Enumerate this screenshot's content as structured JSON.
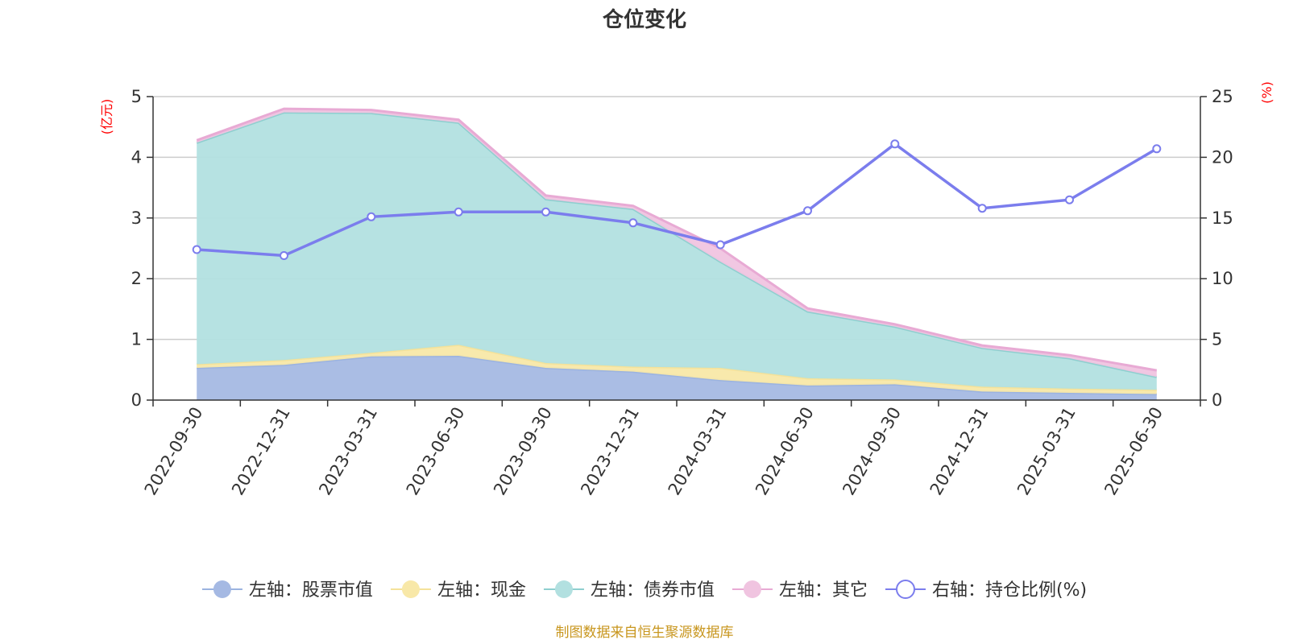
{
  "chart_data": {
    "type": "area",
    "title": "仓位变化",
    "categories": [
      "2022-09-30",
      "2022-12-31",
      "2023-03-31",
      "2023-06-30",
      "2023-09-30",
      "2023-12-31",
      "2024-03-31",
      "2024-06-30",
      "2024-09-30",
      "2024-12-31",
      "2025-03-31",
      "2025-06-30"
    ],
    "left_axis": {
      "unit": "(亿元)",
      "range": [
        0,
        5
      ],
      "ticks": [
        0,
        1,
        2,
        3,
        4,
        5
      ]
    },
    "right_axis": {
      "unit": "(%)",
      "range": [
        0,
        25
      ],
      "ticks": [
        0,
        5,
        10,
        15,
        20,
        25
      ]
    },
    "stacked_series": [
      {
        "name": "左轴：股票市值",
        "color": "#a5b9e3",
        "line_color": "#9bb3e0",
        "values": [
          0.53,
          0.58,
          0.72,
          0.73,
          0.53,
          0.47,
          0.33,
          0.24,
          0.26,
          0.14,
          0.12,
          0.1
        ]
      },
      {
        "name": "左轴：现金",
        "color": "#f8e8a8",
        "line_color": "#f5e29a",
        "values": [
          0.06,
          0.08,
          0.06,
          0.18,
          0.08,
          0.08,
          0.2,
          0.12,
          0.08,
          0.08,
          0.07,
          0.07
        ]
      },
      {
        "name": "左轴：债券市值",
        "color": "#b2e0e0",
        "line_color": "#8ecfcf",
        "values": [
          3.65,
          4.08,
          3.95,
          3.66,
          2.7,
          2.6,
          1.75,
          1.1,
          0.87,
          0.64,
          0.5,
          0.21
        ]
      },
      {
        "name": "左轴：其它",
        "color": "#f0c4e0",
        "line_color": "#e8aad4",
        "values": [
          0.04,
          0.06,
          0.05,
          0.05,
          0.06,
          0.05,
          0.22,
          0.05,
          0.04,
          0.04,
          0.05,
          0.11
        ]
      }
    ],
    "line_series": {
      "name": "右轴：持仓比例(%)",
      "color": "#7b7ded",
      "values": [
        12.4,
        11.9,
        15.1,
        15.5,
        15.5,
        14.6,
        12.8,
        15.6,
        21.1,
        15.8,
        16.5,
        20.7
      ]
    },
    "grid": true,
    "legend_position": "bottom"
  },
  "source_text": "制图数据来自恒生聚源数据库"
}
